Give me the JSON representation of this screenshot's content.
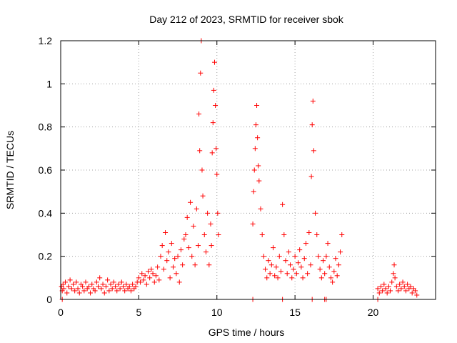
{
  "chart_data": {
    "type": "scatter",
    "title": "Day 212 of 2023, SRMTID for receiver sbok",
    "xlabel": "GPS time / hours",
    "ylabel": "SRMTID / TECUs",
    "xlim": [
      0,
      24
    ],
    "ylim": [
      0,
      1.2
    ],
    "grid": true,
    "marker": "+",
    "marker_color": "#ff0000",
    "x_ticks": [
      0,
      5,
      10,
      15,
      20
    ],
    "y_ticks": [
      0,
      0.2,
      0.4,
      0.6,
      0.8,
      1,
      1.2
    ],
    "x_tick_labels": [
      "0",
      "5",
      "10",
      "15",
      "20"
    ],
    "y_tick_labels": [
      "0",
      "0.2",
      "0.4",
      "0.6",
      "0.8",
      "1",
      "1.2"
    ],
    "series": [
      {
        "points": [
          [
            0.05,
            0.06
          ],
          [
            0.1,
            0.04
          ],
          [
            0.15,
            0.07
          ],
          [
            0.2,
            0.05
          ],
          [
            0.3,
            0.08
          ],
          [
            0.4,
            0.03
          ],
          [
            0.5,
            0.06
          ],
          [
            0.6,
            0.09
          ],
          [
            0.7,
            0.05
          ],
          [
            0.8,
            0.07
          ],
          [
            0.9,
            0.04
          ],
          [
            1.0,
            0.08
          ],
          [
            1.1,
            0.05
          ],
          [
            1.2,
            0.03
          ],
          [
            1.3,
            0.07
          ],
          [
            1.4,
            0.06
          ],
          [
            1.5,
            0.04
          ],
          [
            1.6,
            0.08
          ],
          [
            1.7,
            0.05
          ],
          [
            1.8,
            0.06
          ],
          [
            1.9,
            0.03
          ],
          [
            2.0,
            0.07
          ],
          [
            2.1,
            0.05
          ],
          [
            2.2,
            0.04
          ],
          [
            2.3,
            0.08
          ],
          [
            2.4,
            0.06
          ],
          [
            2.5,
            0.1
          ],
          [
            2.6,
            0.05
          ],
          [
            2.7,
            0.07
          ],
          [
            2.8,
            0.03
          ],
          [
            2.9,
            0.06
          ],
          [
            3.0,
            0.09
          ],
          [
            3.1,
            0.04
          ],
          [
            3.2,
            0.07
          ],
          [
            3.3,
            0.05
          ],
          [
            3.4,
            0.08
          ],
          [
            3.5,
            0.06
          ],
          [
            3.6,
            0.04
          ],
          [
            3.7,
            0.07
          ],
          [
            3.8,
            0.05
          ],
          [
            3.9,
            0.08
          ],
          [
            4.0,
            0.06
          ],
          [
            4.1,
            0.04
          ],
          [
            4.2,
            0.07
          ],
          [
            4.3,
            0.05
          ],
          [
            4.4,
            0.06
          ],
          [
            4.5,
            0.04
          ],
          [
            4.6,
            0.07
          ],
          [
            4.7,
            0.05
          ],
          [
            4.8,
            0.06
          ],
          [
            4.9,
            0.08
          ],
          [
            5.0,
            0.1
          ],
          [
            5.1,
            0.08
          ],
          [
            5.2,
            0.12
          ],
          [
            5.3,
            0.09
          ],
          [
            5.4,
            0.11
          ],
          [
            5.5,
            0.07
          ],
          [
            5.6,
            0.13
          ],
          [
            5.7,
            0.1
          ],
          [
            5.8,
            0.14
          ],
          [
            5.9,
            0.12
          ],
          [
            6.0,
            0.08
          ],
          [
            6.1,
            0.11
          ],
          [
            6.2,
            0.15
          ],
          [
            6.3,
            0.09
          ],
          [
            6.4,
            0.2
          ],
          [
            6.5,
            0.25
          ],
          [
            6.6,
            0.14
          ],
          [
            6.7,
            0.31
          ],
          [
            6.8,
            0.18
          ],
          [
            6.9,
            0.22
          ],
          [
            7.0,
            0.1
          ],
          [
            7.1,
            0.26
          ],
          [
            7.2,
            0.15
          ],
          [
            7.3,
            0.19
          ],
          [
            7.4,
            0.12
          ],
          [
            7.5,
            0.2
          ],
          [
            7.6,
            0.08
          ],
          [
            7.7,
            0.23
          ],
          [
            7.8,
            0.16
          ],
          [
            7.9,
            0.28
          ],
          [
            8.0,
            0.3
          ],
          [
            8.1,
            0.38
          ],
          [
            8.2,
            0.24
          ],
          [
            8.3,
            0.45
          ],
          [
            8.4,
            0.2
          ],
          [
            8.5,
            0.34
          ],
          [
            8.6,
            0.16
          ],
          [
            8.7,
            0.42
          ],
          [
            8.8,
            0.25
          ],
          [
            8.85,
            0.86
          ],
          [
            8.9,
            0.69
          ],
          [
            8.95,
            1.05
          ],
          [
            9.0,
            1.2
          ],
          [
            9.05,
            0.6
          ],
          [
            9.1,
            0.48
          ],
          [
            9.2,
            0.3
          ],
          [
            9.3,
            0.22
          ],
          [
            9.4,
            0.4
          ],
          [
            9.5,
            0.16
          ],
          [
            9.6,
            0.35
          ],
          [
            9.65,
            0.25
          ],
          [
            9.7,
            0.68
          ],
          [
            9.75,
            0.82
          ],
          [
            9.8,
            0.97
          ],
          [
            9.85,
            1.1
          ],
          [
            9.9,
            0.9
          ],
          [
            9.95,
            0.7
          ],
          [
            10.0,
            0.58
          ],
          [
            10.05,
            0.4
          ],
          [
            10.1,
            0.3
          ],
          [
            12.3,
            0.35
          ],
          [
            12.35,
            0.5
          ],
          [
            12.4,
            0.6
          ],
          [
            12.45,
            0.7
          ],
          [
            12.5,
            0.81
          ],
          [
            12.55,
            0.9
          ],
          [
            12.6,
            0.75
          ],
          [
            12.65,
            0.62
          ],
          [
            12.7,
            0.55
          ],
          [
            12.8,
            0.42
          ],
          [
            12.9,
            0.3
          ],
          [
            13.0,
            0.2
          ],
          [
            13.1,
            0.14
          ],
          [
            13.2,
            0.1
          ],
          [
            13.3,
            0.18
          ],
          [
            13.4,
            0.12
          ],
          [
            13.5,
            0.16
          ],
          [
            13.6,
            0.24
          ],
          [
            13.7,
            0.11
          ],
          [
            13.8,
            0.15
          ],
          [
            13.9,
            0.1
          ],
          [
            14.0,
            0.2
          ],
          [
            14.1,
            0.13
          ],
          [
            14.2,
            0.44
          ],
          [
            14.3,
            0.3
          ],
          [
            14.4,
            0.18
          ],
          [
            14.5,
            0.12
          ],
          [
            14.6,
            0.22
          ],
          [
            14.7,
            0.16
          ],
          [
            14.8,
            0.1
          ],
          [
            14.9,
            0.14
          ],
          [
            15.0,
            0.2
          ],
          [
            15.1,
            0.12
          ],
          [
            15.2,
            0.17
          ],
          [
            15.3,
            0.23
          ],
          [
            15.4,
            0.15
          ],
          [
            15.5,
            0.1
          ],
          [
            15.6,
            0.19
          ],
          [
            15.7,
            0.26
          ],
          [
            15.8,
            0.12
          ],
          [
            15.9,
            0.31
          ],
          [
            16.0,
            0.16
          ],
          [
            16.05,
            0.57
          ],
          [
            16.1,
            0.81
          ],
          [
            16.15,
            0.92
          ],
          [
            16.2,
            0.69
          ],
          [
            16.3,
            0.4
          ],
          [
            16.4,
            0.3
          ],
          [
            16.5,
            0.2
          ],
          [
            16.6,
            0.14
          ],
          [
            16.7,
            0.1
          ],
          [
            16.8,
            0.18
          ],
          [
            16.9,
            0.12
          ],
          [
            17.0,
            0.2
          ],
          [
            17.1,
            0.26
          ],
          [
            17.2,
            0.15
          ],
          [
            17.3,
            0.1
          ],
          [
            17.4,
            0.08
          ],
          [
            17.5,
            0.13
          ],
          [
            17.6,
            0.19
          ],
          [
            17.7,
            0.11
          ],
          [
            17.8,
            0.16
          ],
          [
            17.9,
            0.22
          ],
          [
            18.0,
            0.3
          ],
          [
            20.3,
            0.05
          ],
          [
            20.4,
            0.03
          ],
          [
            20.5,
            0.06
          ],
          [
            20.6,
            0.04
          ],
          [
            20.7,
            0.07
          ],
          [
            20.8,
            0.05
          ],
          [
            20.9,
            0.03
          ],
          [
            21.0,
            0.06
          ],
          [
            21.1,
            0.04
          ],
          [
            21.2,
            0.08
          ],
          [
            21.3,
            0.12
          ],
          [
            21.35,
            0.16
          ],
          [
            21.4,
            0.1
          ],
          [
            21.5,
            0.06
          ],
          [
            21.6,
            0.04
          ],
          [
            21.7,
            0.07
          ],
          [
            21.8,
            0.05
          ],
          [
            21.9,
            0.08
          ],
          [
            22.0,
            0.06
          ],
          [
            22.1,
            0.04
          ],
          [
            22.2,
            0.07
          ],
          [
            22.3,
            0.05
          ],
          [
            22.4,
            0.06
          ],
          [
            22.5,
            0.03
          ],
          [
            22.6,
            0.05
          ],
          [
            22.7,
            0.04
          ],
          [
            22.8,
            0.02
          ],
          [
            0.1,
            0.0
          ],
          [
            12.3,
            0.0
          ],
          [
            14.2,
            0.0
          ],
          [
            16.1,
            0.0
          ],
          [
            16.9,
            0.0
          ],
          [
            17.0,
            0.0
          ],
          [
            20.3,
            0.0
          ]
        ]
      }
    ]
  }
}
